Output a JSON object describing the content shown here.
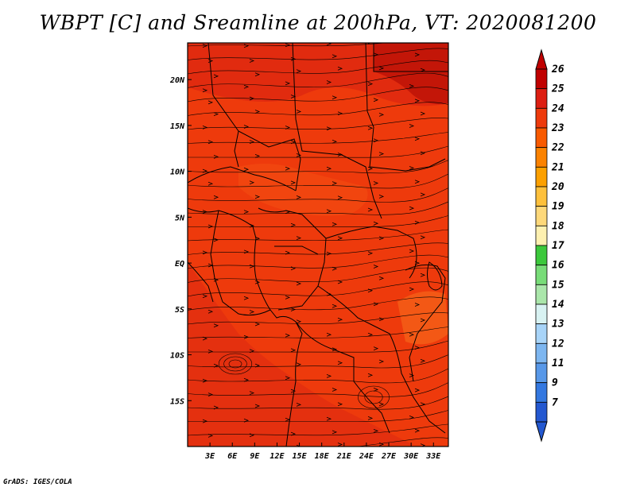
{
  "title": "WBPT [C] and Sreamline at 200hPa, VT: 2020081200",
  "footer": "GrADS: IGES/COLA",
  "map": {
    "field": "WBPT",
    "units": "C",
    "level": "200hPa",
    "valid_time": "2020081200",
    "lon_range": [
      0,
      35
    ],
    "lat_range": [
      -20,
      24
    ],
    "lon_ticks": [
      "3E",
      "6E",
      "9E",
      "12E",
      "15E",
      "18E",
      "21E",
      "24E",
      "27E",
      "30E",
      "33E"
    ],
    "lon_tick_values": [
      3,
      6,
      9,
      12,
      15,
      18,
      21,
      24,
      27,
      30,
      33
    ],
    "lat_ticks": [
      "20N",
      "15N",
      "10N",
      "5N",
      "EQ",
      "5S",
      "10S",
      "15S"
    ],
    "lat_tick_values": [
      20,
      15,
      10,
      5,
      0,
      -5,
      -10,
      -15
    ],
    "base_fill_color": "#ee3a0c",
    "streamline_color": "#000000"
  },
  "colorbar": {
    "labels": [
      "26",
      "25",
      "24",
      "23",
      "22",
      "21",
      "20",
      "19",
      "18",
      "17",
      "16",
      "15",
      "14",
      "13",
      "12",
      "11",
      "9",
      "7"
    ],
    "colors": [
      "#c00000",
      "#dd1e12",
      "#ee3a0c",
      "#f85a00",
      "#fb8200",
      "#fca000",
      "#fdc03c",
      "#fdd87a",
      "#fdf0b0",
      "#3cc83c",
      "#78dc78",
      "#aae6aa",
      "#d8f2f2",
      "#a8d4f8",
      "#7db6f0",
      "#5898e8",
      "#3478e0",
      "#2458d0"
    ]
  }
}
